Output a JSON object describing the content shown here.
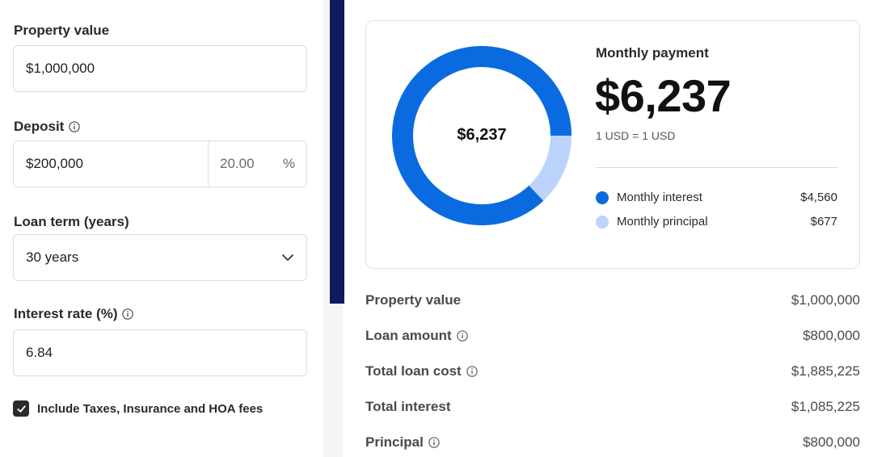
{
  "form": {
    "property_value": {
      "label": "Property value",
      "value": "$1,000,000"
    },
    "deposit": {
      "label": "Deposit",
      "value": "$200,000",
      "percent": "20.00",
      "percent_sign": "%"
    },
    "loan_term": {
      "label": "Loan term (years)",
      "value": "30 years"
    },
    "interest_rate": {
      "label": "Interest rate (%)",
      "value": "6.84"
    },
    "include_fees": {
      "label": "Include Taxes, Insurance and HOA fees",
      "checked": true
    }
  },
  "summary": {
    "donut_center": "$6,237",
    "monthly_payment_title": "Monthly payment",
    "monthly_payment_amount": "$6,237",
    "currency_rate": "1 USD = 1 USD",
    "legend": [
      {
        "label": "Monthly interest",
        "amount": "$4,560",
        "value": 4560,
        "color": "#0a6be0"
      },
      {
        "label": "Monthly principal",
        "amount": "$677",
        "value": 677,
        "color": "#bcd4fb"
      }
    ],
    "rows": [
      {
        "label": "Property value",
        "amount": "$1,000,000",
        "info": false
      },
      {
        "label": "Loan amount",
        "amount": "$800,000",
        "info": true
      },
      {
        "label": "Total loan cost",
        "amount": "$1,885,225",
        "info": true
      },
      {
        "label": "Total interest",
        "amount": "$1,085,225",
        "info": false
      },
      {
        "label": "Principal",
        "amount": "$800,000",
        "info": true
      }
    ]
  },
  "colors": {
    "primary": "#0a6be0",
    "secondary": "#bcd4fb",
    "navy": "#0c1a5e"
  },
  "icons": {
    "info": "info-circle-icon",
    "chevron": "chevron-down-icon",
    "check": "check-icon"
  }
}
